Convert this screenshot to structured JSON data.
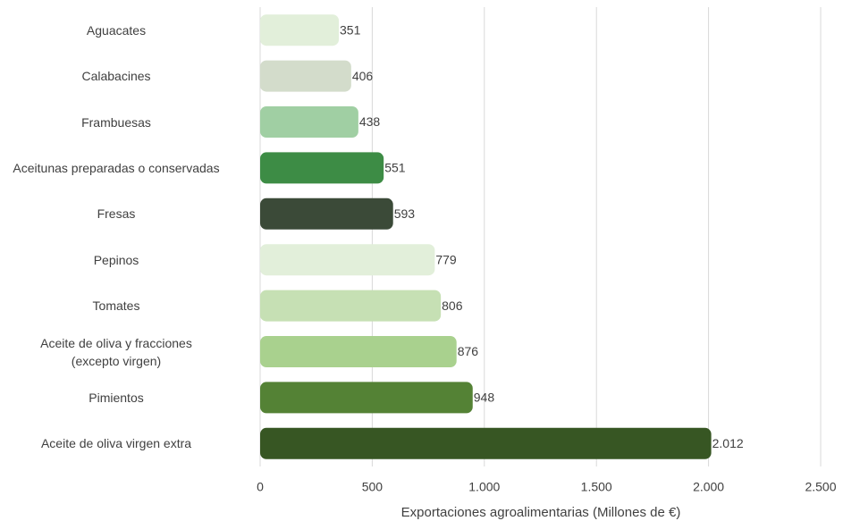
{
  "chart_data": {
    "type": "bar",
    "orientation": "horizontal",
    "x_label": "Exportaciones agroalimentarias (Millones de €)",
    "categories": [
      "Aguacates",
      "Calabacines",
      "Frambuesas",
      "Aceitunas preparadas o conservadas",
      "Fresas",
      "Pepinos",
      "Tomates",
      "Aceite de oliva y fracciones\n(excepto virgen)",
      "Pimientos",
      "Aceite de oliva virgen extra"
    ],
    "values": [
      351,
      406,
      438,
      551,
      593,
      779,
      806,
      876,
      948,
      2012
    ],
    "value_labels": [
      "351",
      "406",
      "438",
      "551",
      "593",
      "779",
      "806",
      "876",
      "948",
      "2.012"
    ],
    "colors": [
      "#e2efda",
      "#d3dccb",
      "#a0cfa3",
      "#3d8c45",
      "#3b4a38",
      "#e2efda",
      "#c6e0b4",
      "#a9d18e",
      "#548235",
      "#375623"
    ],
    "xlim": [
      0,
      2500
    ],
    "xticks": [
      0,
      500,
      {
        "value": 1000,
        "label": "1.000"
      },
      {
        "value": 1500,
        "label": "1.500"
      },
      {
        "value": 2000,
        "label": "2.000"
      },
      {
        "value": 2500,
        "label": "2.500"
      }
    ],
    "grid": true
  }
}
